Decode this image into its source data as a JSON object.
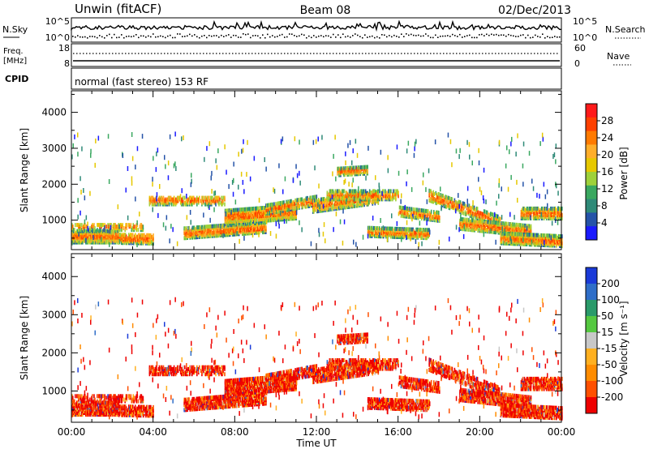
{
  "header": {
    "station": "Unwin (fitACF)",
    "beam": "Beam 08",
    "date": "02/Dec/2013"
  },
  "top_panels": {
    "nsky_label": "N.Sky",
    "nsky_ticks": [
      "10^5",
      "10^0"
    ],
    "nsearch_ticks": [
      "10^5",
      "10^0"
    ],
    "nsearch_label": "N.Search",
    "freq_label_1": "Freq.",
    "freq_label_2": "[MHz]",
    "freq_ticks": [
      "18",
      "8"
    ],
    "nave_ticks": [
      "60",
      "0"
    ],
    "nave_label": "Nave",
    "cpid_label": "CPID",
    "cpid_value": "normal (fast stereo) 153 RF"
  },
  "chart_data": [
    {
      "type": "heatmap",
      "name": "power",
      "ylabel": "Slant Range [km]",
      "yticks": [
        "4000",
        "3000",
        "2000",
        "1000"
      ],
      "ylim": [
        180,
        4600
      ],
      "xticks": [
        "00:00",
        "04:00",
        "08:00",
        "12:00",
        "16:00",
        "20:00",
        "00:00"
      ],
      "xlim_hours": [
        0,
        24
      ],
      "colorbar_label": "Power [dB]",
      "colorbar_ticks": [
        "28",
        "24",
        "20",
        "16",
        "12",
        "8",
        "4"
      ],
      "colorbar_colors_top_to_bottom": [
        "#ff1a1a",
        "#ff4000",
        "#ff7a00",
        "#ffae2a",
        "#e6c800",
        "#9ed13a",
        "#3aa860",
        "#2f8a78",
        "#2553a8",
        "#1a1aff"
      ]
    },
    {
      "type": "heatmap",
      "name": "velocity",
      "ylabel": "Slant Range [km]",
      "yticks": [
        "4000",
        "3000",
        "2000",
        "1000"
      ],
      "ylim": [
        180,
        4600
      ],
      "xticks": [
        "00:00",
        "04:00",
        "08:00",
        "12:00",
        "16:00",
        "20:00",
        "00:00"
      ],
      "xlim_hours": [
        0,
        24
      ],
      "xlabel": "Time UT",
      "colorbar_label": "Velocity [m s⁻¹]",
      "colorbar_ticks": [
        "200",
        "100",
        "50",
        "15",
        "-15",
        "-50",
        "-100",
        "-200"
      ],
      "colorbar_colors_top_to_bottom": [
        "#1a3ad8",
        "#2f6ec8",
        "#2a9a6a",
        "#55c840",
        "#c8c8c8",
        "#ffb020",
        "#ff8c00",
        "#ff5000",
        "#ee0000"
      ]
    }
  ],
  "colors": {
    "nsky": "#000000",
    "power_high": "#ff1a1a",
    "velocity_neg": "#ee0000"
  }
}
